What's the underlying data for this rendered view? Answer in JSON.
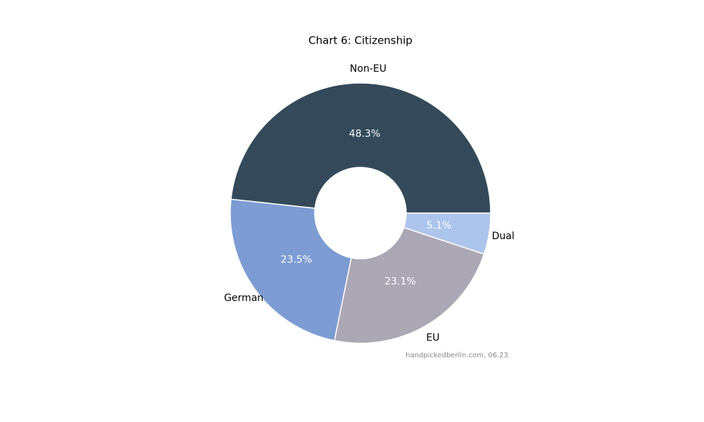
{
  "chart_data": {
    "type": "pie",
    "title": "Chart 6: Citizenship",
    "categories": [
      "Non-EU",
      "German",
      "EU",
      "Dual"
    ],
    "values": [
      48.3,
      23.5,
      23.1,
      5.1
    ],
    "value_labels": [
      "48.3%",
      "23.5%",
      "23.1%",
      "5.1%"
    ],
    "colors": [
      "#344a5a",
      "#7d9cd3",
      "#aba7b4",
      "#adc4ec"
    ],
    "donut": true,
    "annotation": "handpickedberlin.com, 06.23"
  }
}
